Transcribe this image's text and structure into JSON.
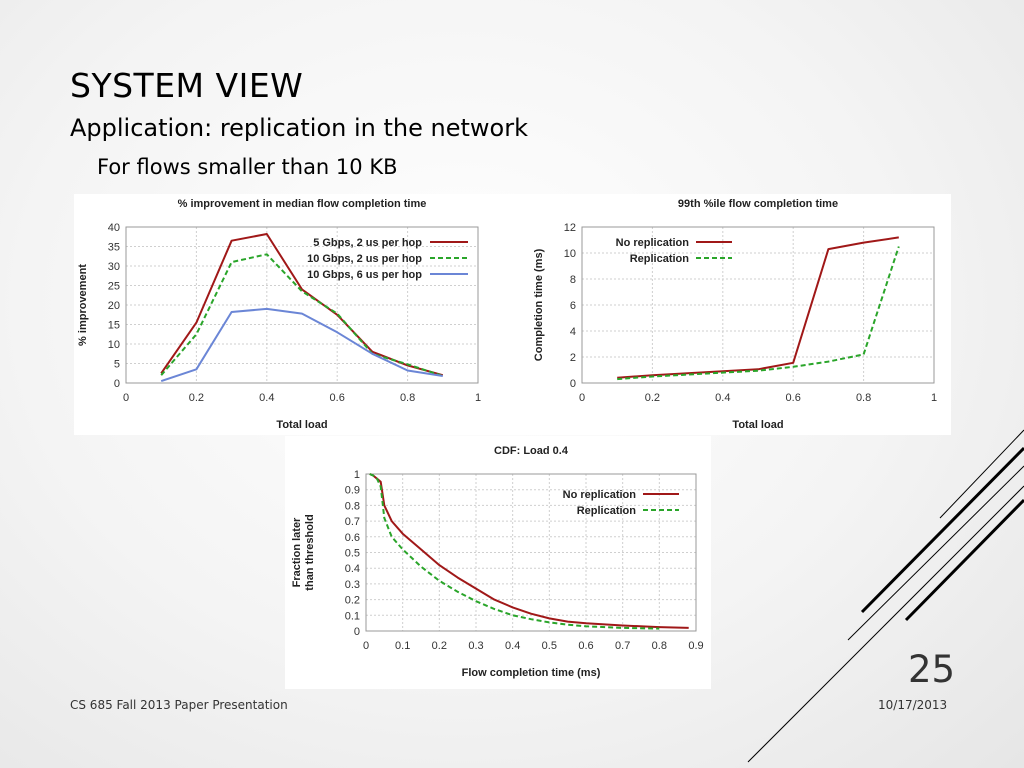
{
  "slide": {
    "title": "SYSTEM VIEW",
    "bullet_1": "Application: replication in the network",
    "bullet_2": "For flows smaller than 10 KB",
    "footer_left": "CS 685 Fall 2013 Paper Presentation",
    "footer_date": "10/17/2013",
    "page_number": "25"
  },
  "chart_data": [
    {
      "type": "line",
      "title": "% improvement in median flow completion time",
      "xlabel": "Total load",
      "ylabel": "% improvement",
      "xlim": [
        0,
        1
      ],
      "ylim": [
        0,
        40
      ],
      "xticks": [
        0,
        0.2,
        0.4,
        0.6,
        0.8,
        1
      ],
      "xtick_labels": [
        "0",
        "0.2",
        "0.4",
        "0.6",
        "0.8",
        "1"
      ],
      "yticks": [
        0,
        5,
        10,
        15,
        20,
        25,
        30,
        35,
        40
      ],
      "ytick_labels": [
        "0",
        "5",
        "10",
        "15",
        "20",
        "25",
        "30",
        "35",
        "40"
      ],
      "grid": true,
      "legend_position": "top-right",
      "x": [
        0.1,
        0.2,
        0.3,
        0.4,
        0.5,
        0.6,
        0.7,
        0.8,
        0.9
      ],
      "series": [
        {
          "name": "5 Gbps, 2 us per hop",
          "color": "#a01818",
          "dash": "solid",
          "values": [
            2.5,
            15.5,
            36.5,
            38.2,
            24,
            17.5,
            8,
            4.5,
            2
          ]
        },
        {
          "name": "10 Gbps, 2 us per hop",
          "color": "#2aa52a",
          "dash": "dashed",
          "values": [
            2,
            12.5,
            31,
            33,
            23.5,
            17.8,
            7.5,
            4.8,
            1.8
          ]
        },
        {
          "name": "10 Gbps, 6 us per hop",
          "color": "#6b86d6",
          "dash": "solid",
          "values": [
            0.5,
            3.5,
            18.2,
            19,
            17.8,
            13,
            7.5,
            3.2,
            1.8
          ]
        }
      ]
    },
    {
      "type": "line",
      "title": "99th %ile flow completion time",
      "xlabel": "Total load",
      "ylabel": "Completion time (ms)",
      "xlim": [
        0,
        1
      ],
      "ylim": [
        0,
        12
      ],
      "xticks": [
        0,
        0.2,
        0.4,
        0.6,
        0.8,
        1
      ],
      "xtick_labels": [
        "0",
        "0.2",
        "0.4",
        "0.6",
        "0.8",
        "1"
      ],
      "yticks": [
        0,
        2,
        4,
        6,
        8,
        10,
        12
      ],
      "ytick_labels": [
        "0",
        "2",
        "4",
        "6",
        "8",
        "10",
        "12"
      ],
      "grid": true,
      "legend_position": "top-left",
      "x": [
        0.1,
        0.2,
        0.3,
        0.4,
        0.5,
        0.6,
        0.7,
        0.8,
        0.9
      ],
      "series": [
        {
          "name": "No replication",
          "color": "#a01818",
          "dash": "solid",
          "values": [
            0.4,
            0.6,
            0.75,
            0.9,
            1.05,
            1.55,
            10.3,
            10.8,
            11.2
          ]
        },
        {
          "name": "Replication",
          "color": "#2aa52a",
          "dash": "dashed",
          "values": [
            0.3,
            0.5,
            0.65,
            0.8,
            0.95,
            1.25,
            1.65,
            2.2,
            10.5
          ]
        }
      ]
    },
    {
      "type": "line",
      "title": "CDF: Load 0.4",
      "xlabel": "Flow completion time (ms)",
      "ylabel": "Fraction later than threshold",
      "ylabel_lines": [
        "Fraction later",
        "than threshold"
      ],
      "xlim": [
        0,
        0.9
      ],
      "ylim": [
        0,
        1
      ],
      "xticks": [
        0,
        0.1,
        0.2,
        0.3,
        0.4,
        0.5,
        0.6,
        0.7,
        0.8,
        0.9
      ],
      "xtick_labels": [
        "0",
        "0.1",
        "0.2",
        "0.3",
        "0.4",
        "0.5",
        "0.6",
        "0.7",
        "0.8",
        "0.9"
      ],
      "yticks": [
        0,
        0.1,
        0.2,
        0.3,
        0.4,
        0.5,
        0.6,
        0.7,
        0.8,
        0.9,
        1
      ],
      "ytick_labels": [
        "0",
        "0.1",
        "0.2",
        "0.3",
        "0.4",
        "0.5",
        "0.6",
        "0.7",
        "0.8",
        "0.9",
        "1"
      ],
      "grid": true,
      "legend_position": "top-right",
      "series": [
        {
          "name": "No replication",
          "color": "#a01818",
          "dash": "solid",
          "x": [
            0.01,
            0.02,
            0.03,
            0.04,
            0.05,
            0.07,
            0.1,
            0.15,
            0.2,
            0.25,
            0.3,
            0.35,
            0.4,
            0.45,
            0.5,
            0.55,
            0.6,
            0.7,
            0.8,
            0.88
          ],
          "values": [
            1,
            0.99,
            0.97,
            0.95,
            0.8,
            0.7,
            0.62,
            0.52,
            0.42,
            0.34,
            0.27,
            0.2,
            0.15,
            0.11,
            0.08,
            0.06,
            0.05,
            0.035,
            0.025,
            0.02
          ]
        },
        {
          "name": "Replication",
          "color": "#2aa52a",
          "dash": "dashed",
          "x": [
            0.01,
            0.02,
            0.03,
            0.04,
            0.05,
            0.07,
            0.1,
            0.15,
            0.2,
            0.25,
            0.3,
            0.35,
            0.4,
            0.45,
            0.5,
            0.55,
            0.6,
            0.7,
            0.8
          ],
          "values": [
            1,
            0.99,
            0.97,
            0.92,
            0.72,
            0.6,
            0.52,
            0.41,
            0.32,
            0.25,
            0.19,
            0.14,
            0.1,
            0.075,
            0.055,
            0.04,
            0.03,
            0.02,
            0.015
          ]
        }
      ]
    }
  ]
}
